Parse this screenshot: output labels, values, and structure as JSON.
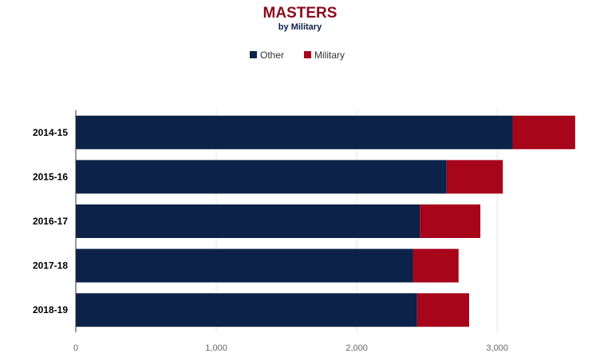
{
  "colors": {
    "other": "#0c2249",
    "military": "#a6051a",
    "title": "#8b0a1e",
    "subtitle": "#0c2249",
    "grid": "#e6e6e6",
    "axis": "#333333",
    "tick_text": "#666666"
  },
  "chart_data": {
    "type": "bar",
    "orientation": "horizontal",
    "stacked": true,
    "title": "MASTERS",
    "subtitle": "by Military",
    "categories": [
      "2014-15",
      "2015-16",
      "2016-17",
      "2017-18",
      "2018-19"
    ],
    "series": [
      {
        "name": "Other",
        "values": [
          3110,
          2640,
          2450,
          2400,
          2430
        ]
      },
      {
        "name": "Military",
        "values": [
          445,
          400,
          430,
          325,
          370
        ]
      }
    ],
    "xlim": [
      0,
      3550
    ],
    "xticks": [
      0,
      1000,
      2000,
      3000
    ],
    "xtick_labels": [
      "0",
      "1,000",
      "2,000",
      "3,000"
    ],
    "grid": true,
    "legend": "top-center"
  }
}
